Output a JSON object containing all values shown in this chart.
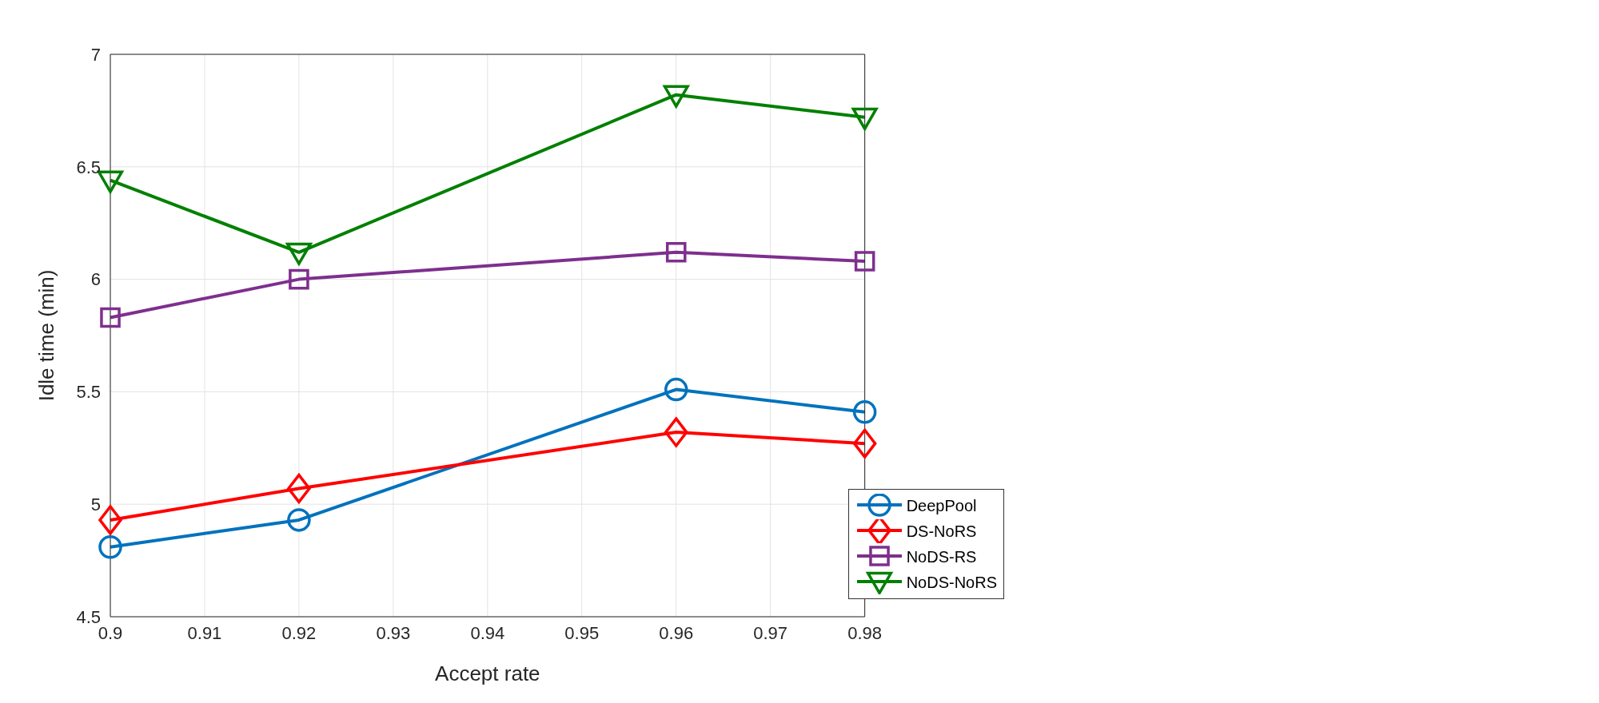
{
  "chart_data": {
    "type": "line",
    "xlabel": "Accept rate",
    "ylabel": "Idle time (min)",
    "x": [
      0.9,
      0.92,
      0.96,
      0.98
    ],
    "series": [
      {
        "name": "DeepPool",
        "color": "#0072bd",
        "marker": "circle",
        "values": [
          4.81,
          4.93,
          5.51,
          5.41
        ]
      },
      {
        "name": "DS-NoRS",
        "color": "#ff0000",
        "marker": "diamond",
        "values": [
          4.93,
          5.07,
          5.32,
          5.27
        ]
      },
      {
        "name": "NoDS-RS",
        "color": "#7e2f8e",
        "marker": "square",
        "values": [
          5.83,
          6.0,
          6.12,
          6.08
        ]
      },
      {
        "name": "NoDS-NoRS",
        "color": "#008000",
        "marker": "triangle",
        "values": [
          6.44,
          6.12,
          6.82,
          6.72
        ]
      }
    ],
    "xlim": [
      0.9,
      0.98
    ],
    "xticks": [
      0.9,
      0.91,
      0.92,
      0.93,
      0.94,
      0.95,
      0.96,
      0.97,
      0.98
    ],
    "ylim": [
      4.5,
      7
    ],
    "yticks": [
      4.5,
      5,
      5.5,
      6,
      6.5,
      7
    ],
    "grid": true,
    "legend": "bottom right",
    "line_style": "solid"
  }
}
